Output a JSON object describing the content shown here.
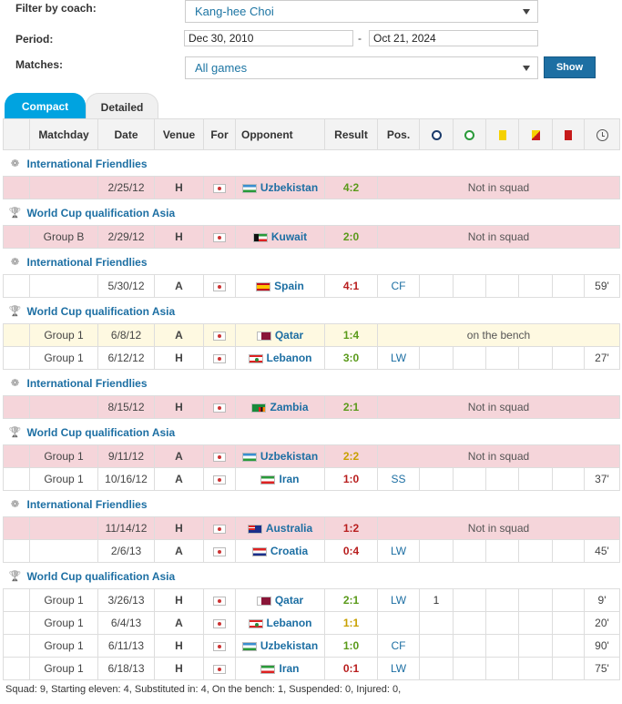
{
  "filters": {
    "coach_label": "Filter by coach:",
    "coach_value": "Kang-hee Choi",
    "period_label": "Period:",
    "period_from": "Dec 30, 2010",
    "period_dash": "-",
    "period_to": "Oct 21, 2024",
    "matches_label": "Matches:",
    "matches_value": "All games",
    "show_button": "Show"
  },
  "tabs": {
    "compact": "Compact",
    "detailed": "Detailed"
  },
  "headers": {
    "matchday": "Matchday",
    "date": "Date",
    "venue": "Venue",
    "for": "For",
    "opponent": "Opponent",
    "result": "Result",
    "pos": "Pos."
  },
  "header_icons": [
    "goals-icon",
    "assists-icon",
    "yellow-card-icon",
    "yellow-red-card-icon",
    "red-card-icon",
    "minutes-clock-icon"
  ],
  "sections": [
    {
      "competition": "International Friendlies",
      "icon": "friendly-icon",
      "matches": [
        {
          "matchday": "",
          "date": "2/25/12",
          "venue": "H",
          "flag": "uzb",
          "opponent": "Uzbekistan",
          "result": "4:2",
          "res": "win",
          "note": "Not in squad",
          "row": "pink"
        }
      ]
    },
    {
      "competition": "World Cup qualification Asia",
      "icon": "world-cup-icon",
      "matches": [
        {
          "matchday": "Group B",
          "date": "2/29/12",
          "venue": "H",
          "flag": "kwt",
          "opponent": "Kuwait",
          "result": "2:0",
          "res": "win",
          "note": "Not in squad",
          "row": "pink"
        }
      ]
    },
    {
      "competition": "International Friendlies",
      "icon": "friendly-icon",
      "matches": [
        {
          "matchday": "",
          "date": "5/30/12",
          "venue": "A",
          "flag": "esp",
          "opponent": "Spain",
          "result": "4:1",
          "res": "loss",
          "pos": "CF",
          "goals": "",
          "minutes": "59'",
          "row": "white"
        }
      ]
    },
    {
      "competition": "World Cup qualification Asia",
      "icon": "world-cup-icon",
      "matches": [
        {
          "matchday": "Group 1",
          "date": "6/8/12",
          "venue": "A",
          "flag": "qat",
          "opponent": "Qatar",
          "result": "1:4",
          "res": "win",
          "note": "on the bench",
          "row": "yellow"
        },
        {
          "matchday": "Group 1",
          "date": "6/12/12",
          "venue": "H",
          "flag": "lbn",
          "opponent": "Lebanon",
          "result": "3:0",
          "res": "win",
          "pos": "LW",
          "goals": "",
          "minutes": "27'",
          "row": "white"
        }
      ]
    },
    {
      "competition": "International Friendlies",
      "icon": "friendly-icon",
      "matches": [
        {
          "matchday": "",
          "date": "8/15/12",
          "venue": "H",
          "flag": "zam",
          "opponent": "Zambia",
          "result": "2:1",
          "res": "win",
          "note": "Not in squad",
          "row": "pink"
        }
      ]
    },
    {
      "competition": "World Cup qualification Asia",
      "icon": "world-cup-icon",
      "matches": [
        {
          "matchday": "Group 1",
          "date": "9/11/12",
          "venue": "A",
          "flag": "uzb",
          "opponent": "Uzbekistan",
          "result": "2:2",
          "res": "draw",
          "note": "Not in squad",
          "row": "pink"
        },
        {
          "matchday": "Group 1",
          "date": "10/16/12",
          "venue": "A",
          "flag": "irn",
          "opponent": "Iran",
          "result": "1:0",
          "res": "loss",
          "pos": "SS",
          "goals": "",
          "minutes": "37'",
          "row": "white"
        }
      ]
    },
    {
      "competition": "International Friendlies",
      "icon": "friendly-icon",
      "matches": [
        {
          "matchday": "",
          "date": "11/14/12",
          "venue": "H",
          "flag": "aus",
          "opponent": "Australia",
          "result": "1:2",
          "res": "loss",
          "note": "Not in squad",
          "row": "pink"
        },
        {
          "matchday": "",
          "date": "2/6/13",
          "venue": "A",
          "flag": "cro",
          "opponent": "Croatia",
          "result": "0:4",
          "res": "loss",
          "pos": "LW",
          "goals": "",
          "minutes": "45'",
          "row": "white"
        }
      ]
    },
    {
      "competition": "World Cup qualification Asia",
      "icon": "world-cup-icon",
      "matches": [
        {
          "matchday": "Group 1",
          "date": "3/26/13",
          "venue": "H",
          "flag": "qat",
          "opponent": "Qatar",
          "result": "2:1",
          "res": "win",
          "pos": "LW",
          "goals": "1",
          "minutes": "9'",
          "row": "white"
        },
        {
          "matchday": "Group 1",
          "date": "6/4/13",
          "venue": "A",
          "flag": "lbn",
          "opponent": "Lebanon",
          "result": "1:1",
          "res": "draw",
          "pos": "",
          "goals": "",
          "minutes": "20'",
          "row": "white"
        },
        {
          "matchday": "Group 1",
          "date": "6/11/13",
          "venue": "H",
          "flag": "uzb",
          "opponent": "Uzbekistan",
          "result": "1:0",
          "res": "win",
          "pos": "CF",
          "goals": "",
          "minutes": "90'",
          "row": "white"
        },
        {
          "matchday": "Group 1",
          "date": "6/18/13",
          "venue": "H",
          "flag": "irn",
          "opponent": "Iran",
          "result": "0:1",
          "res": "loss",
          "pos": "LW",
          "goals": "",
          "minutes": "75'",
          "row": "white"
        }
      ]
    }
  ],
  "footer": "Squad: 9, Starting eleven: 4, Substituted in: 4, On the bench: 1, Suspended: 0, Injured: 0,"
}
